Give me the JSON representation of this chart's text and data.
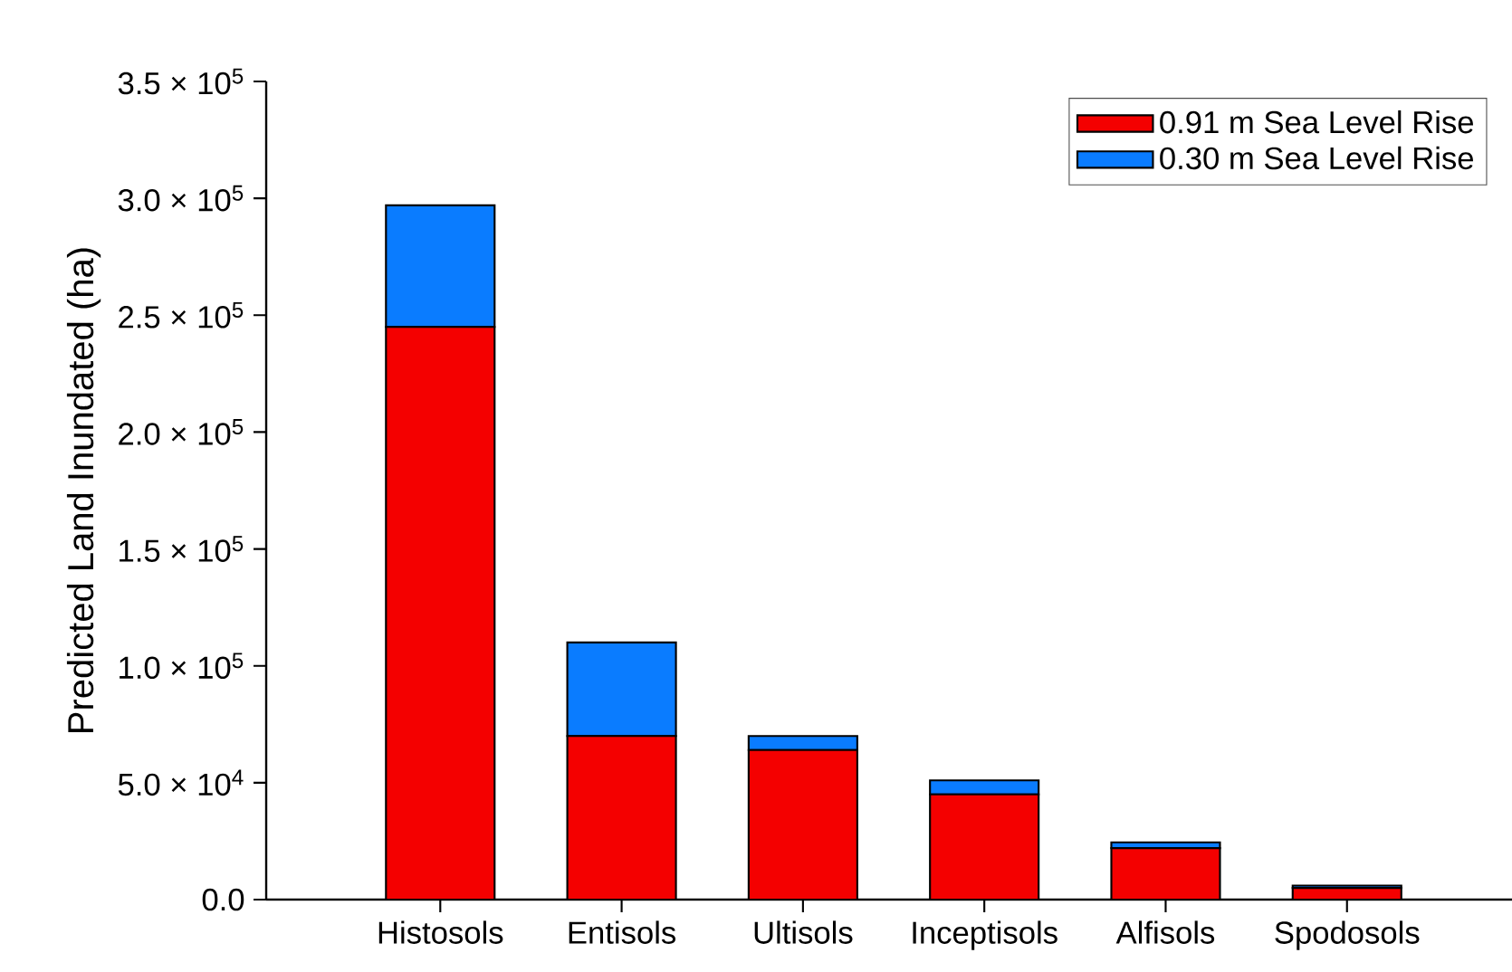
{
  "chart_data": {
    "type": "bar",
    "stacked": true,
    "ylabel": "Predicted Land Inundated (ha)",
    "categories": [
      "Histosols",
      "Entisols",
      "Ultisols",
      "Inceptisols",
      "Alfisols",
      "Spodosols"
    ],
    "series": [
      {
        "name": "0.91 m Sea Level Rise",
        "color": "#f40000",
        "values": [
          245000,
          70000,
          64000,
          45000,
          22000,
          5000
        ]
      },
      {
        "name": "0.30 m Sea Level Rise",
        "color": "#0a7cff",
        "values": [
          52000,
          40000,
          6000,
          6000,
          2500,
          1000
        ]
      }
    ],
    "ylim": [
      0,
      350000
    ],
    "yticks": [
      {
        "value": 0,
        "label": "0.0"
      },
      {
        "value": 50000,
        "label": "5.0 × 10$^{4}$"
      },
      {
        "value": 100000,
        "label": "1.0 × 10$^{5}$"
      },
      {
        "value": 150000,
        "label": "1.5 × 10$^{5}$"
      },
      {
        "value": 200000,
        "label": "2.0 × 10$^{5}$"
      },
      {
        "value": 250000,
        "label": "2.5 × 10$^{5}$"
      },
      {
        "value": 300000,
        "label": "3.0 × 10$^{5}$"
      },
      {
        "value": 350000,
        "label": "3.5 × 10$^{5}$"
      }
    ],
    "legend": "top right",
    "grid": false
  }
}
